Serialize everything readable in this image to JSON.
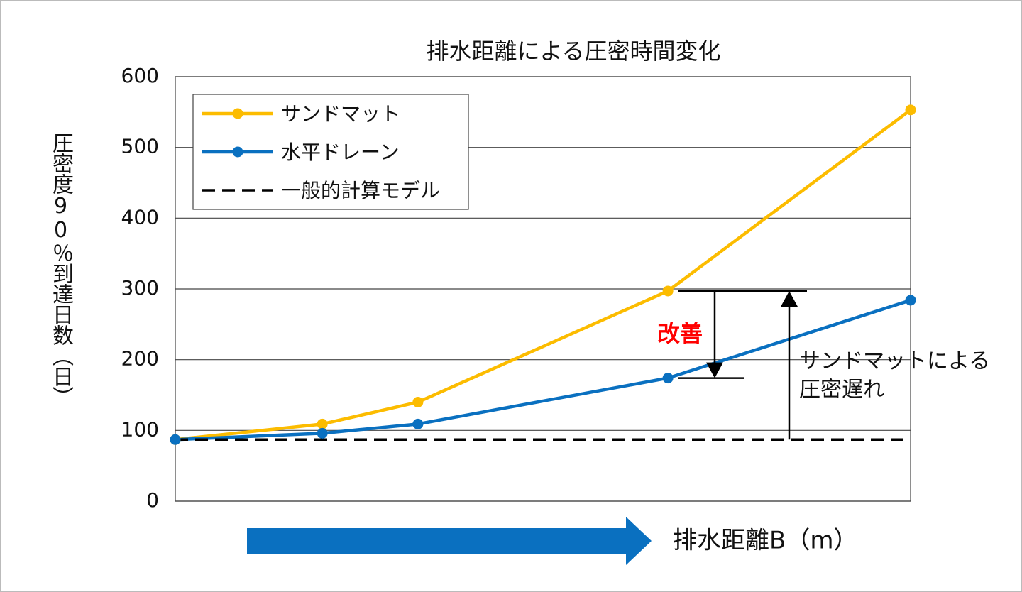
{
  "chart_data": {
    "type": "line",
    "title": "排水距離による圧密時間変化",
    "y_label": "圧密度90％到達日数（日）",
    "x_label": "排水距離B（m）",
    "x": [
      0,
      20,
      33,
      67,
      100
    ],
    "xlim": [
      0,
      100
    ],
    "ylim": [
      0,
      600
    ],
    "yticks": [
      0,
      100,
      200,
      300,
      400,
      500,
      600
    ],
    "grid": true,
    "legend": "upper left",
    "series": [
      {
        "name": "サンドマット",
        "color": "#fcbc00",
        "dashed": false,
        "markers": true,
        "values": [
          87,
          109,
          140,
          297,
          553
        ]
      },
      {
        "name": "水平ドレーン",
        "color": "#0a70c0",
        "dashed": false,
        "markers": true,
        "values": [
          87,
          96,
          109,
          174,
          284
        ]
      },
      {
        "name": "一般的計算モデル",
        "color": "#000000",
        "dashed": true,
        "markers": false,
        "values": [
          87,
          87,
          87,
          87,
          87
        ]
      }
    ],
    "annotations": [
      {
        "text": "改善",
        "color": "#ff0000"
      },
      {
        "lines": [
          "サンドマットによる",
          "圧密遅れ"
        ]
      }
    ]
  }
}
